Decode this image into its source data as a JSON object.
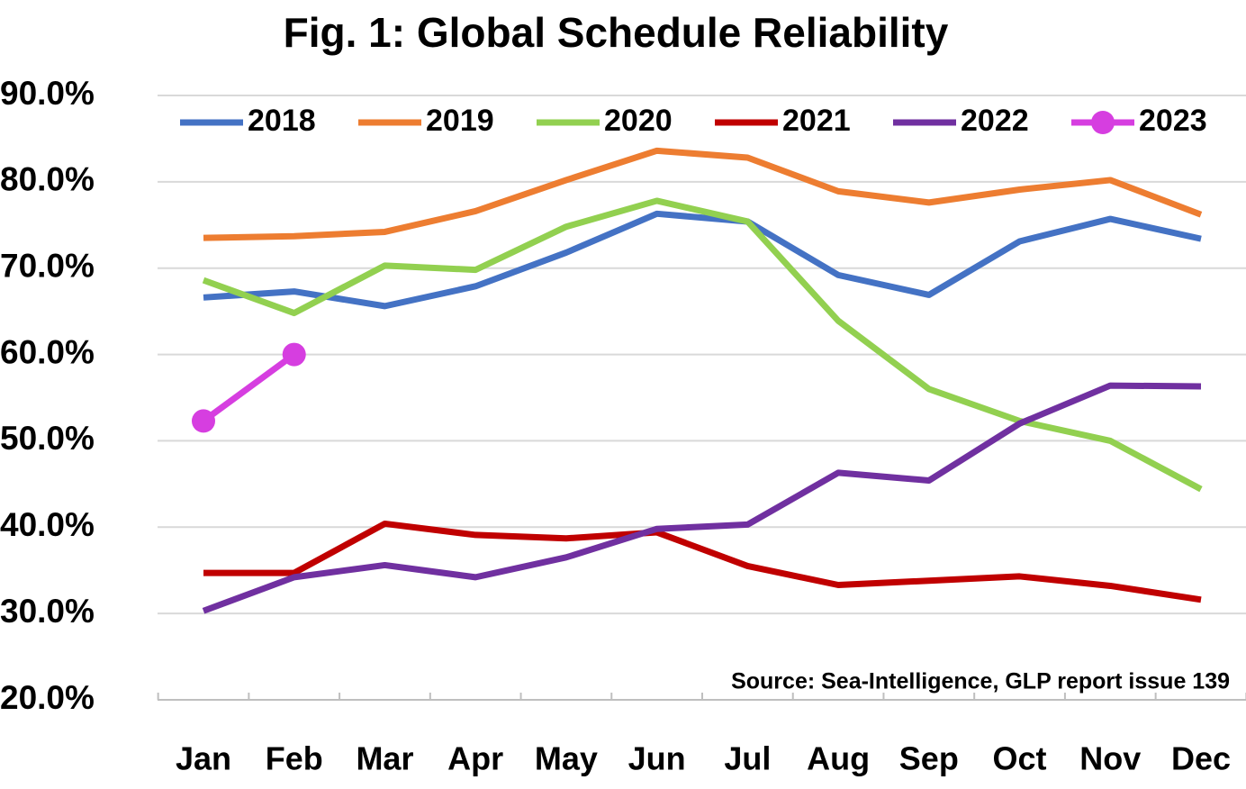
{
  "chart_data": {
    "type": "line",
    "title": "Fig. 1: Global Schedule Reliability",
    "annotation": "Source: Sea-Intelligence, GLP report issue 139",
    "categories": [
      "Jan",
      "Feb",
      "Mar",
      "Apr",
      "May",
      "Jun",
      "Jul",
      "Aug",
      "Sep",
      "Oct",
      "Nov",
      "Dec"
    ],
    "series": [
      {
        "name": "2018",
        "color": "#4472c4",
        "values": [
          66.6,
          67.3,
          65.6,
          67.9,
          71.8,
          76.3,
          75.4,
          69.2,
          66.9,
          73.1,
          75.7,
          73.4
        ]
      },
      {
        "name": "2019",
        "color": "#ed7d31",
        "values": [
          73.5,
          73.7,
          74.2,
          76.6,
          80.2,
          83.6,
          82.8,
          78.9,
          77.6,
          79.1,
          80.2,
          76.2
        ]
      },
      {
        "name": "2020",
        "color": "#92d050",
        "values": [
          68.6,
          64.8,
          70.3,
          69.8,
          74.8,
          77.8,
          75.4,
          63.9,
          56.0,
          52.3,
          50.0,
          44.4
        ]
      },
      {
        "name": "2021",
        "color": "#c00000",
        "values": [
          34.7,
          34.7,
          40.4,
          39.1,
          38.7,
          39.4,
          35.5,
          33.3,
          33.8,
          34.3,
          33.2,
          31.6
        ]
      },
      {
        "name": "2022",
        "color": "#7030a0",
        "values": [
          30.3,
          34.2,
          35.6,
          34.2,
          36.5,
          39.8,
          40.3,
          46.3,
          45.4,
          52.0,
          56.4,
          56.3
        ]
      },
      {
        "name": "2023",
        "color": "#d63ee0",
        "marker": "circle",
        "values": [
          52.3,
          60.0,
          null,
          null,
          null,
          null,
          null,
          null,
          null,
          null,
          null,
          null
        ]
      }
    ],
    "ylim": [
      20,
      90
    ],
    "yticks": [
      {
        "value": 20,
        "label": "20.0%"
      },
      {
        "value": 30,
        "label": "30.0%"
      },
      {
        "value": 40,
        "label": "40.0%"
      },
      {
        "value": 50,
        "label": "50.0%"
      },
      {
        "value": 60,
        "label": "60.0%"
      },
      {
        "value": 70,
        "label": "70.0%"
      },
      {
        "value": 80,
        "label": "80.0%"
      },
      {
        "value": 90,
        "label": "90.0%"
      }
    ],
    "grid": true,
    "legend": "top"
  }
}
